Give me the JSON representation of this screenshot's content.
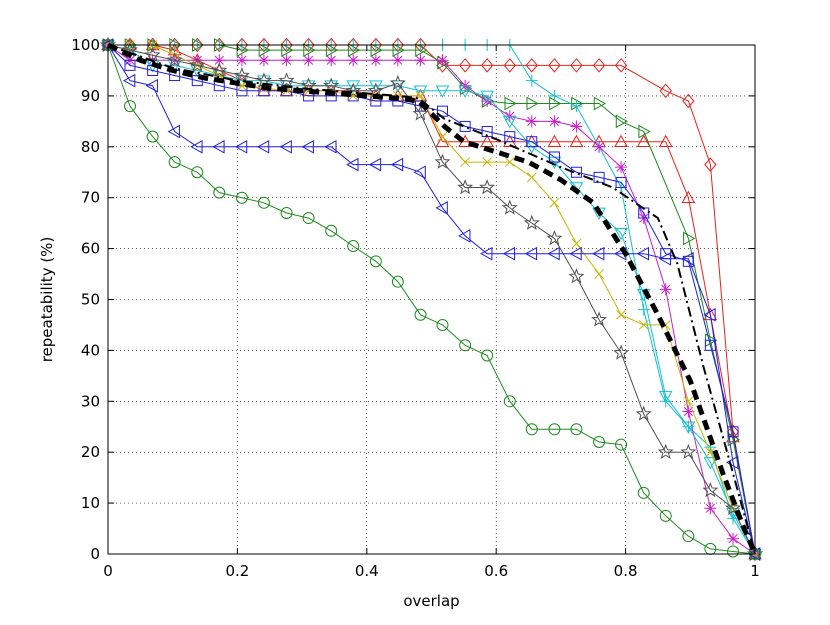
{
  "chart_data": {
    "type": "line",
    "title": "",
    "xlabel": "overlap",
    "ylabel": "repeatability (%)",
    "xlim": [
      0,
      1
    ],
    "ylim": [
      0,
      100
    ],
    "xticks": [
      0,
      0.2,
      0.4,
      0.6,
      0.8,
      1
    ],
    "xtick_labels": [
      "0",
      "0.2",
      "0.4",
      "0.6",
      "0.8",
      "1"
    ],
    "yticks": [
      0,
      10,
      20,
      30,
      40,
      50,
      60,
      70,
      80,
      90,
      100
    ],
    "ytick_labels": [
      "0",
      "10",
      "20",
      "30",
      "40",
      "50",
      "60",
      "70",
      "80",
      "90",
      "100"
    ],
    "grid": true,
    "series": [
      {
        "name": "diamond-red",
        "color": "#e8231c",
        "marker": "diamond",
        "x": [
          0,
          0.034,
          0.069,
          0.103,
          0.138,
          0.172,
          0.207,
          0.241,
          0.276,
          0.31,
          0.345,
          0.379,
          0.414,
          0.448,
          0.483,
          0.517,
          0.552,
          0.586,
          0.621,
          0.655,
          0.69,
          0.724,
          0.759,
          0.793,
          0.862,
          0.897,
          0.931,
          0.966,
          1
        ],
        "y": [
          100,
          100,
          100,
          100,
          100,
          100,
          100,
          100,
          100,
          100,
          100,
          100,
          100,
          100,
          100,
          96,
          96,
          96,
          96,
          96,
          96,
          96,
          96,
          96,
          91,
          89,
          76.5,
          24,
          0
        ]
      },
      {
        "name": "triangle-up-red",
        "color": "#e8231c",
        "marker": "triangle-up",
        "x": [
          0,
          0.034,
          0.069,
          0.103,
          0.138,
          0.172,
          0.207,
          0.241,
          0.276,
          0.31,
          0.345,
          0.379,
          0.414,
          0.448,
          0.483,
          0.517,
          0.552,
          0.586,
          0.621,
          0.655,
          0.69,
          0.724,
          0.759,
          0.793,
          0.828,
          0.862,
          0.897,
          0.931,
          0.966,
          1
        ],
        "y": [
          100,
          100,
          100,
          99,
          97,
          95,
          93,
          91,
          91,
          91,
          91,
          91,
          90,
          90,
          90,
          81,
          81,
          81,
          81,
          81,
          81,
          81,
          81,
          81,
          81,
          81,
          70,
          47,
          23,
          0
        ]
      },
      {
        "name": "triangle-right-green",
        "color": "#1f8a1f",
        "marker": "triangle-right",
        "x": [
          0,
          0.034,
          0.069,
          0.103,
          0.138,
          0.172,
          0.207,
          0.241,
          0.276,
          0.31,
          0.345,
          0.379,
          0.414,
          0.448,
          0.483,
          0.517,
          0.552,
          0.586,
          0.621,
          0.655,
          0.69,
          0.724,
          0.759,
          0.793,
          0.828,
          0.897,
          0.931,
          0.966,
          1
        ],
        "y": [
          100,
          100,
          100,
          100,
          100,
          100,
          99,
          99,
          99,
          99,
          99,
          99,
          99,
          99,
          99,
          96.5,
          91.5,
          89,
          88.5,
          88.5,
          88.5,
          88.5,
          88.5,
          85,
          83,
          62,
          42,
          22.5,
          0
        ]
      },
      {
        "name": "plus-cyan",
        "color": "#17bfcf",
        "marker": "plus",
        "x": [
          0,
          0.034,
          0.069,
          0.103,
          0.138,
          0.172,
          0.207,
          0.241,
          0.276,
          0.31,
          0.345,
          0.379,
          0.414,
          0.448,
          0.483,
          0.517,
          0.552,
          0.586,
          0.621,
          0.655,
          0.69,
          0.724,
          0.759,
          0.793,
          0.828,
          0.862,
          0.897,
          0.931,
          0.966,
          1
        ],
        "y": [
          100,
          100,
          100,
          100,
          100,
          100,
          100,
          100,
          100,
          100,
          100,
          100,
          100,
          100,
          100,
          100,
          100,
          100,
          100,
          93,
          90,
          88,
          80,
          72,
          48,
          30,
          25,
          21,
          7,
          0
        ]
      },
      {
        "name": "star-magenta",
        "color": "#cc1fcc",
        "marker": "asterisk",
        "x": [
          0,
          0.034,
          0.069,
          0.103,
          0.138,
          0.172,
          0.207,
          0.241,
          0.276,
          0.31,
          0.345,
          0.379,
          0.414,
          0.448,
          0.483,
          0.517,
          0.552,
          0.586,
          0.621,
          0.655,
          0.69,
          0.724,
          0.759,
          0.793,
          0.828,
          0.862,
          0.897,
          0.931,
          0.966,
          1
        ],
        "y": [
          100,
          97,
          97,
          97,
          97,
          97,
          97,
          97,
          97,
          97,
          97,
          97,
          97,
          97,
          97,
          97,
          92,
          89,
          86,
          85,
          85,
          84,
          80,
          76,
          66,
          52,
          28,
          9,
          3,
          0
        ]
      },
      {
        "name": "triangle-down-cyan",
        "color": "#17bfcf",
        "marker": "triangle-down",
        "x": [
          0,
          0.034,
          0.069,
          0.103,
          0.138,
          0.172,
          0.207,
          0.241,
          0.276,
          0.31,
          0.345,
          0.379,
          0.414,
          0.448,
          0.483,
          0.517,
          0.552,
          0.586,
          0.621,
          0.655,
          0.69,
          0.724,
          0.759,
          0.793,
          0.828,
          0.862,
          0.897,
          0.931,
          0.966,
          1
        ],
        "y": [
          100,
          99,
          96,
          96,
          95,
          94,
          93,
          93,
          92,
          92,
          92,
          92,
          92,
          92,
          91,
          91,
          91,
          90,
          85,
          80,
          77,
          72,
          67,
          63,
          51,
          31,
          25,
          18,
          8,
          0
        ]
      },
      {
        "name": "square-blue",
        "color": "#1f1fe0",
        "marker": "square",
        "x": [
          0,
          0.034,
          0.069,
          0.103,
          0.138,
          0.172,
          0.207,
          0.241,
          0.276,
          0.31,
          0.345,
          0.379,
          0.414,
          0.448,
          0.483,
          0.517,
          0.552,
          0.586,
          0.621,
          0.655,
          0.69,
          0.724,
          0.759,
          0.793,
          0.828,
          0.862,
          0.897,
          0.931,
          0.966,
          1
        ],
        "y": [
          100,
          96,
          95,
          94,
          93,
          92,
          91,
          91,
          91,
          90,
          90,
          90,
          89,
          89,
          88,
          87,
          84,
          83,
          82,
          81,
          78,
          75,
          74,
          73,
          67,
          59,
          57.5,
          41,
          24,
          0
        ]
      },
      {
        "name": "cross-yellow",
        "color": "#c8b400",
        "marker": "cross",
        "x": [
          0,
          0.034,
          0.069,
          0.103,
          0.138,
          0.172,
          0.207,
          0.241,
          0.276,
          0.31,
          0.345,
          0.379,
          0.414,
          0.448,
          0.483,
          0.517,
          0.552,
          0.586,
          0.621,
          0.655,
          0.69,
          0.724,
          0.759,
          0.793,
          0.828,
          0.862,
          0.897,
          0.931,
          0.966,
          1
        ],
        "y": [
          100,
          100,
          100,
          98,
          96,
          94,
          92,
          91.5,
          91,
          91,
          91,
          90,
          90,
          90,
          90,
          82,
          77,
          77,
          77,
          74,
          69,
          61,
          55,
          47,
          45,
          45,
          30,
          20,
          9,
          0
        ]
      },
      {
        "name": "hexagram-gray",
        "color": "#505050",
        "marker": "star",
        "x": [
          0,
          0.034,
          0.069,
          0.103,
          0.138,
          0.172,
          0.207,
          0.241,
          0.276,
          0.31,
          0.345,
          0.379,
          0.414,
          0.448,
          0.483,
          0.517,
          0.552,
          0.586,
          0.621,
          0.655,
          0.69,
          0.724,
          0.759,
          0.793,
          0.828,
          0.862,
          0.897,
          0.931,
          0.966,
          1
        ],
        "y": [
          100,
          99,
          98,
          97,
          96,
          95,
          94,
          93,
          93,
          92,
          92,
          91,
          91,
          92.5,
          86.5,
          77,
          72,
          72,
          68,
          65,
          62,
          54.5,
          46,
          39.5,
          27.5,
          20,
          20,
          12.5,
          9,
          0
        ]
      },
      {
        "name": "triangle-left-blue",
        "color": "#1f1fe0",
        "marker": "triangle-left",
        "x": [
          0,
          0.034,
          0.069,
          0.103,
          0.138,
          0.172,
          0.207,
          0.241,
          0.276,
          0.31,
          0.345,
          0.379,
          0.414,
          0.448,
          0.483,
          0.517,
          0.552,
          0.586,
          0.621,
          0.655,
          0.69,
          0.724,
          0.759,
          0.793,
          0.828,
          0.862,
          0.897,
          0.931,
          0.966,
          1
        ],
        "y": [
          100,
          93,
          92,
          83,
          80,
          80,
          80,
          80,
          80,
          80,
          80,
          76.5,
          76.5,
          76.5,
          75,
          68,
          62.5,
          59,
          59,
          59,
          59,
          59,
          59,
          59,
          59,
          58,
          58,
          47,
          18,
          0
        ]
      },
      {
        "name": "circle-green",
        "color": "#1f8a1f",
        "marker": "circle",
        "x": [
          0,
          0.034,
          0.069,
          0.103,
          0.138,
          0.172,
          0.207,
          0.241,
          0.276,
          0.31,
          0.345,
          0.379,
          0.414,
          0.448,
          0.483,
          0.517,
          0.552,
          0.586,
          0.621,
          0.655,
          0.69,
          0.724,
          0.759,
          0.793,
          0.828,
          0.862,
          0.897,
          0.931,
          0.966,
          1
        ],
        "y": [
          100,
          88,
          82,
          77,
          75,
          71,
          70,
          69,
          67,
          66,
          63.5,
          60.5,
          57.5,
          53.5,
          47,
          45,
          41,
          39,
          30,
          24.5,
          24.5,
          24.5,
          22,
          21.5,
          12,
          7.5,
          3.5,
          1,
          0.5,
          0
        ]
      },
      {
        "name": "mean",
        "color": "#000000",
        "marker": "none",
        "style": "thick-dashed",
        "x": [
          0,
          0.05,
          0.1,
          0.15,
          0.2,
          0.25,
          0.3,
          0.35,
          0.4,
          0.45,
          0.48,
          0.5,
          0.52,
          0.55,
          0.6,
          0.65,
          0.7,
          0.75,
          0.8,
          0.85,
          0.9,
          0.95,
          0.98,
          1
        ],
        "y": [
          100,
          97,
          95,
          93.5,
          92.5,
          91.5,
          91,
          90.5,
          90,
          89.5,
          89,
          86.5,
          84,
          81,
          79,
          77,
          73.5,
          69,
          59,
          47,
          34,
          16,
          6,
          0
        ]
      },
      {
        "name": "mean-dashdot",
        "color": "#000000",
        "marker": "none",
        "style": "dash-dot",
        "x": [
          0,
          0.1,
          0.2,
          0.3,
          0.4,
          0.45,
          0.48,
          0.52,
          0.6,
          0.7,
          0.78,
          0.85,
          0.88,
          0.92,
          0.97,
          1
        ],
        "y": [
          100,
          95.5,
          93,
          91.5,
          90.5,
          90,
          89.5,
          85.5,
          81.5,
          76,
          72,
          66,
          57,
          37,
          14,
          0
        ]
      }
    ]
  }
}
